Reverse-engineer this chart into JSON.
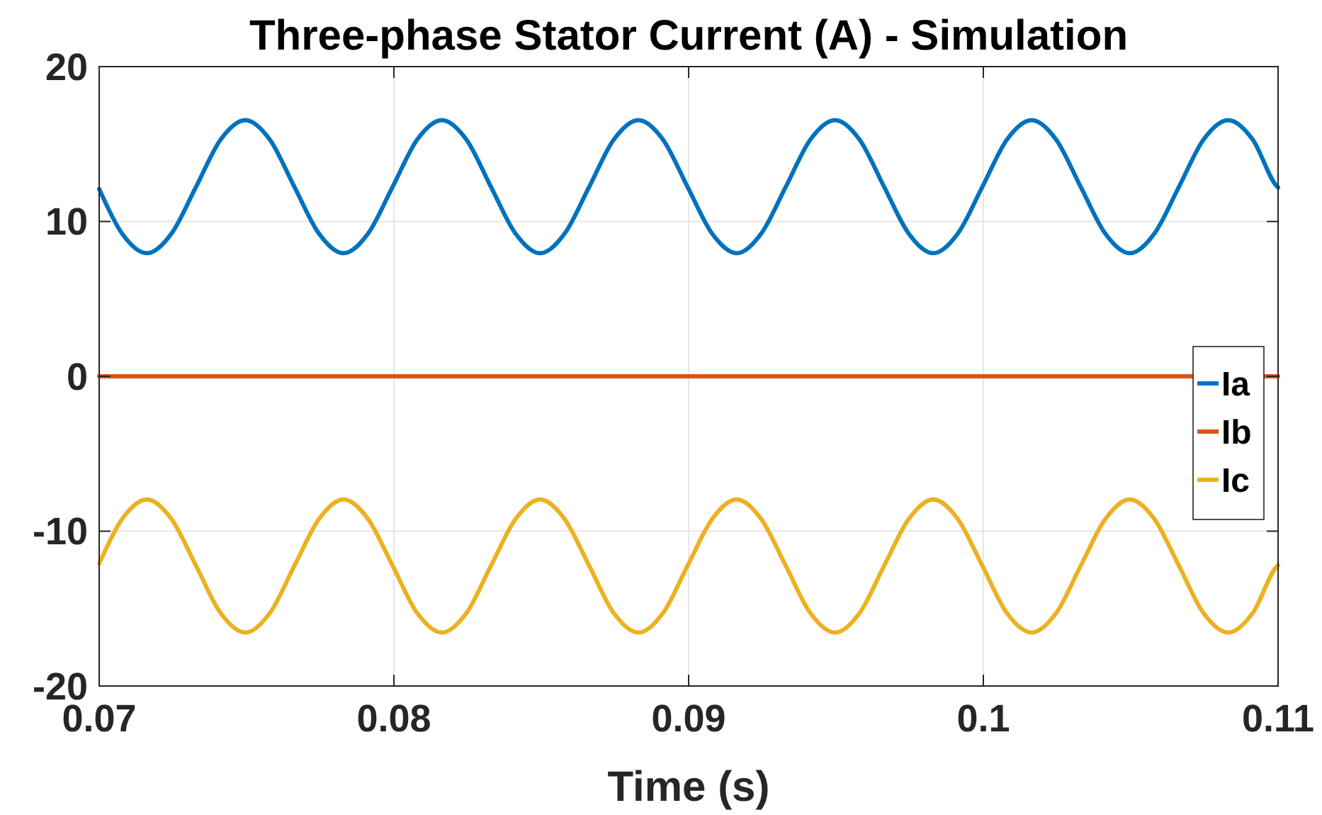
{
  "chart_data": {
    "type": "line",
    "title": "Three-phase Stator Current (A) - Simulation",
    "xlabel": "Time (s)",
    "x": [
      0.07,
      0.07078,
      0.07162,
      0.07245,
      0.07329,
      0.07412,
      0.07496,
      0.07579,
      0.07662,
      0.07746,
      0.07829,
      0.07912,
      0.07996,
      0.08079,
      0.08163,
      0.08246,
      0.08329,
      0.08413,
      0.08496,
      0.08579,
      0.08663,
      0.08746,
      0.0883,
      0.08913,
      0.08996,
      0.0908,
      0.09163,
      0.09246,
      0.0933,
      0.09413,
      0.09497,
      0.0958,
      0.09663,
      0.09747,
      0.0983,
      0.09913,
      0.09997,
      0.1008,
      0.10164,
      0.10247,
      0.1033,
      0.10414,
      0.10497,
      0.1058,
      0.10664,
      0.10747,
      0.10831,
      0.10914,
      0.10997,
      0.11
    ],
    "series": [
      {
        "name": "Ia",
        "color": "#0072bd",
        "values": [
          12.1,
          9.21,
          7.95,
          9.21,
          12.25,
          15.29,
          16.55,
          15.29,
          12.25,
          9.21,
          7.95,
          9.21,
          12.25,
          15.29,
          16.55,
          15.29,
          12.25,
          9.21,
          7.95,
          9.21,
          12.25,
          15.29,
          16.55,
          15.29,
          12.25,
          9.21,
          7.95,
          9.21,
          12.25,
          15.29,
          16.55,
          15.29,
          12.25,
          9.21,
          7.95,
          9.21,
          12.25,
          15.29,
          16.55,
          15.29,
          12.25,
          9.21,
          7.95,
          9.21,
          12.25,
          15.29,
          16.55,
          15.29,
          12.25,
          12.2
        ]
      },
      {
        "name": "Ib",
        "color": "#d95319",
        "x": [
          0.07,
          0.11
        ],
        "values": [
          0,
          0
        ]
      },
      {
        "name": "Ic",
        "color": "#edb120",
        "values": [
          -12.1,
          -9.21,
          -7.95,
          -9.21,
          -12.25,
          -15.29,
          -16.55,
          -15.29,
          -12.25,
          -9.21,
          -7.95,
          -9.21,
          -12.25,
          -15.29,
          -16.55,
          -15.29,
          -12.25,
          -9.21,
          -7.95,
          -9.21,
          -12.25,
          -15.29,
          -16.55,
          -15.29,
          -12.25,
          -9.21,
          -7.95,
          -9.21,
          -12.25,
          -15.29,
          -16.55,
          -15.29,
          -12.25,
          -9.21,
          -7.95,
          -9.21,
          -12.25,
          -15.29,
          -16.55,
          -15.29,
          -12.25,
          -9.21,
          -7.95,
          -9.21,
          -12.25,
          -15.29,
          -16.55,
          -15.29,
          -12.25,
          -12.2
        ]
      }
    ],
    "xlim": [
      0.07,
      0.11
    ],
    "xticks": [
      0.07,
      0.08,
      0.09,
      0.1,
      0.11
    ],
    "ylim": [
      -20,
      20
    ],
    "yticks": [
      -20,
      -10,
      0,
      10,
      20
    ],
    "grid": true,
    "legend": "right",
    "marker": "none",
    "line_style": "solid"
  }
}
